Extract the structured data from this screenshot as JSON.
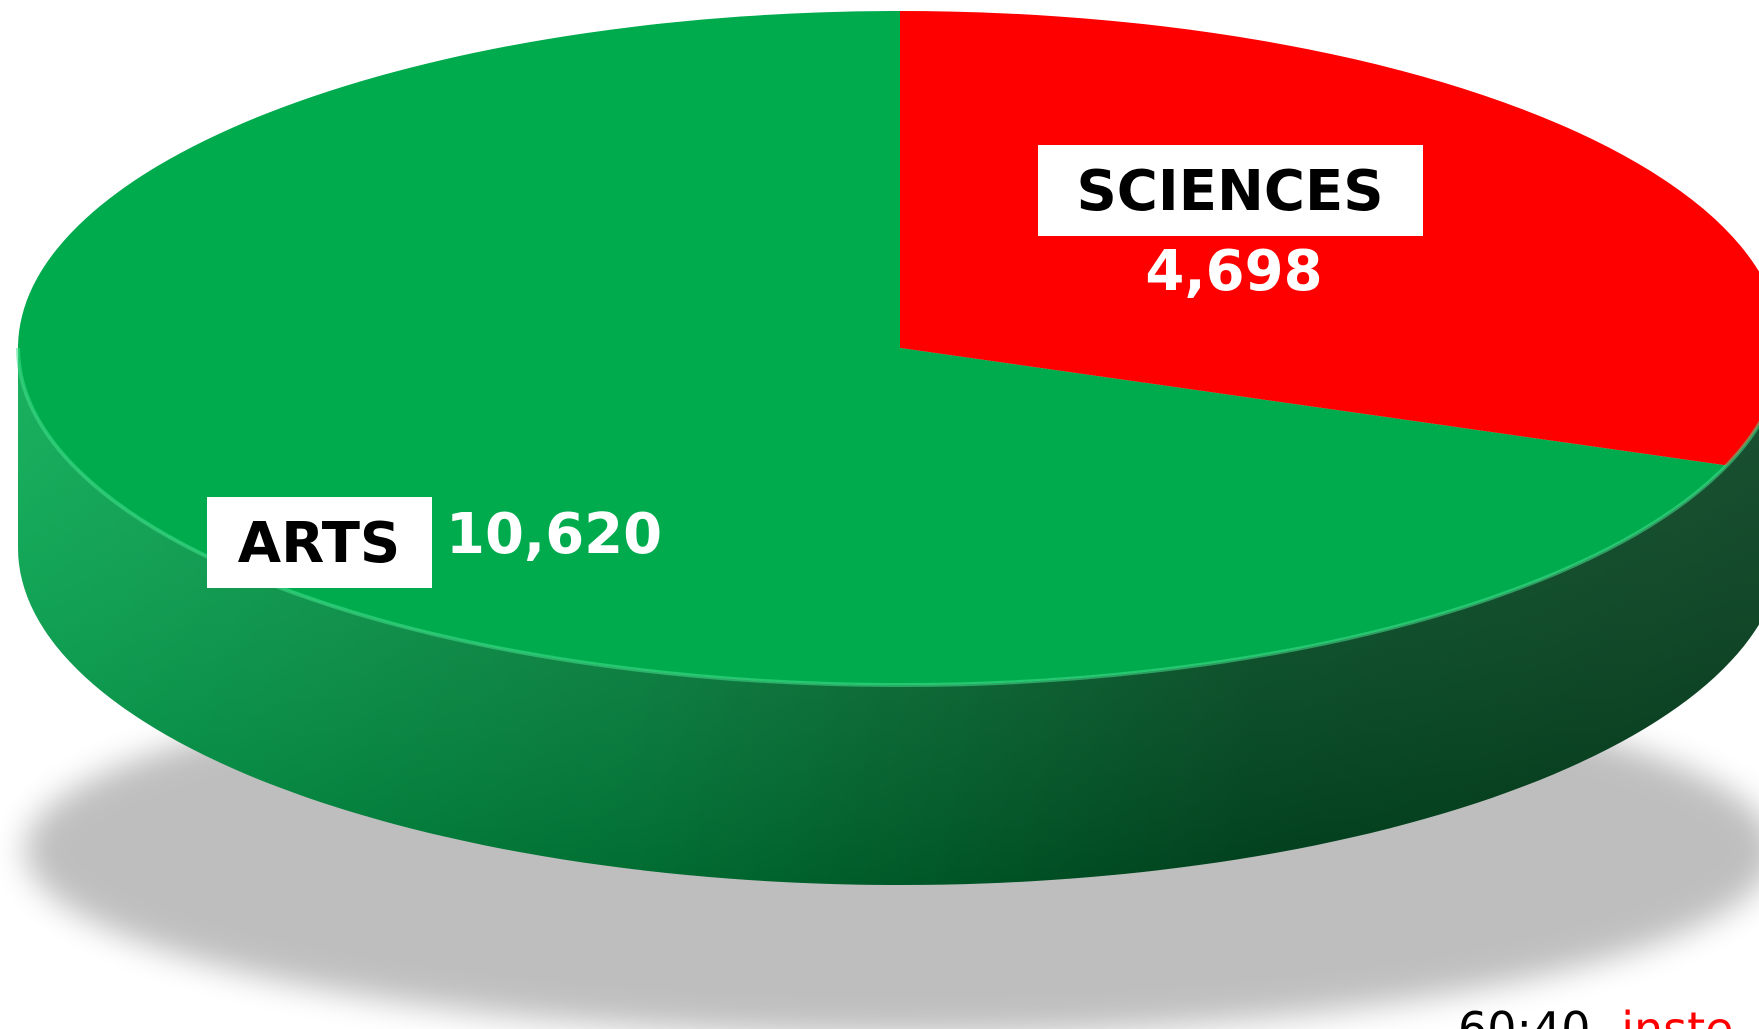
{
  "chart_data": {
    "type": "pie",
    "style": "3d",
    "categories": [
      "SCIENCES",
      "ARTS"
    ],
    "values": [
      4698,
      10620
    ],
    "value_labels": [
      "4,698",
      "10,620"
    ],
    "colors": [
      "#ff0000",
      "#00ab4e"
    ],
    "side_colors": [
      "#b30000",
      "#00873d"
    ],
    "legend": "none"
  },
  "footnote": {
    "ratio": "60:40",
    "word": "inste",
    "ratio_color": "#000000",
    "word_color": "#ff0000"
  }
}
